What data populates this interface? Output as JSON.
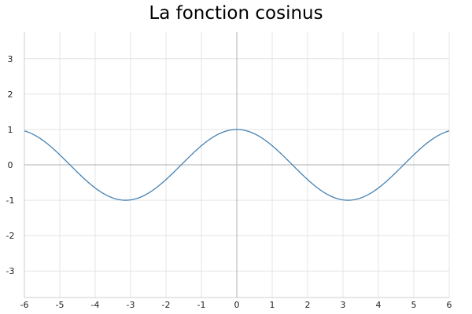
{
  "chart_data": {
    "type": "line",
    "title": "La fonction cosinus",
    "xlabel": "",
    "ylabel": "",
    "xlim": [
      -6,
      6
    ],
    "ylim": [
      -3.75,
      3.75
    ],
    "x_ticks": [
      -6,
      -5,
      -4,
      -3,
      -2,
      -1,
      0,
      1,
      2,
      3,
      4,
      5,
      6
    ],
    "y_ticks": [
      -3,
      -2,
      -1,
      0,
      1,
      2,
      3
    ],
    "grid": true,
    "series": [
      {
        "function": "cos(x)",
        "color": "#4682b4",
        "x": [
          -6,
          -5.5,
          -5,
          -4.5,
          -4,
          -3.5,
          -3.1416,
          -3,
          -2.5,
          -2,
          -1.5,
          -1,
          -0.5,
          0,
          0.5,
          1,
          1.5,
          2,
          2.5,
          3,
          3.1416,
          3.5,
          4,
          4.5,
          5,
          5.5,
          6
        ],
        "y": [
          0.96,
          0.709,
          0.284,
          -0.211,
          -0.654,
          -0.936,
          -1,
          -0.99,
          -0.801,
          -0.416,
          0.071,
          0.54,
          0.878,
          1,
          0.878,
          0.54,
          0.071,
          -0.416,
          -0.801,
          -0.99,
          -1,
          -0.936,
          -0.654,
          -0.211,
          0.284,
          0.709,
          0.96
        ]
      }
    ]
  }
}
